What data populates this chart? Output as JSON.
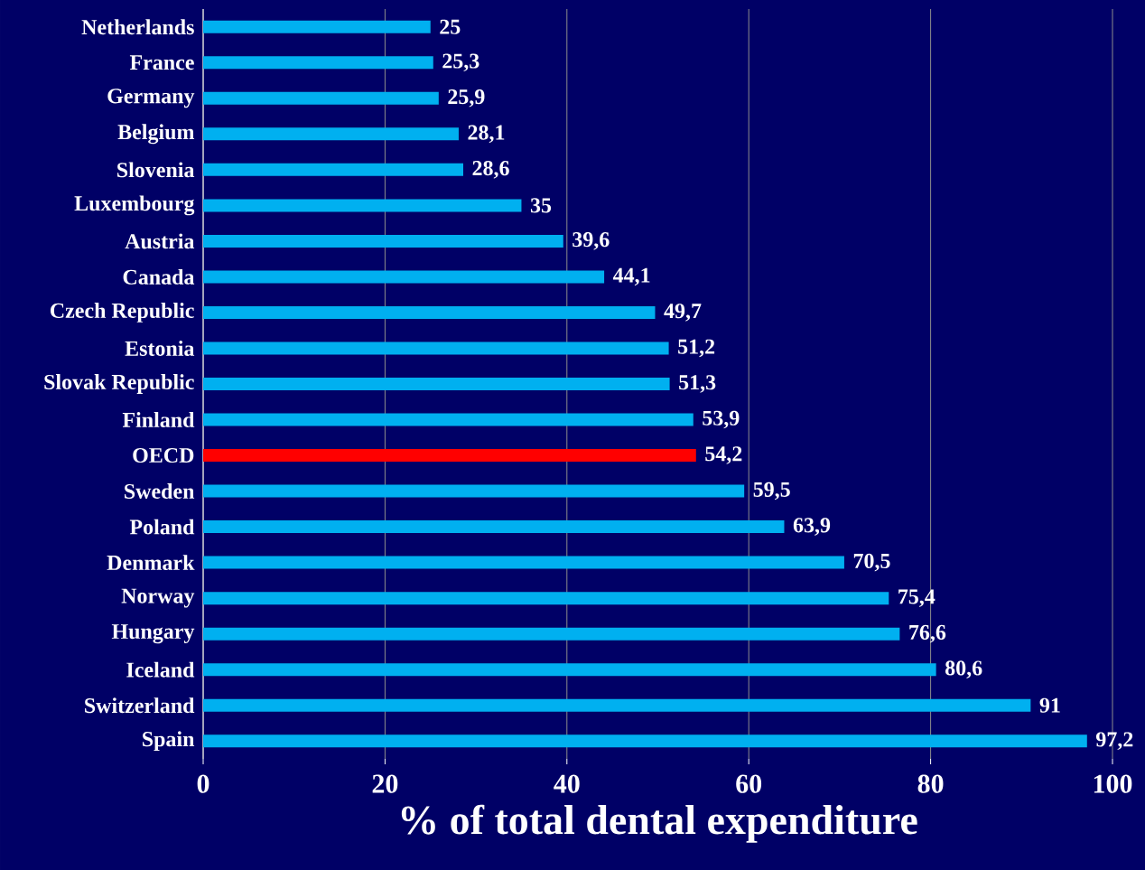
{
  "chart_data": {
    "type": "bar",
    "orientation": "horizontal",
    "xlabel": "% of total dental expenditure",
    "categories": [
      "Netherlands",
      "France",
      "Germany",
      "Belgium",
      "Slovenia",
      "Luxembourg",
      "Austria",
      "Canada",
      "Czech Republic",
      "Estonia",
      "Slovak Republic",
      "Finland",
      "OECD",
      "Sweden",
      "Poland",
      "Denmark",
      "Norway",
      "Hungary",
      "Iceland",
      "Switzerland",
      "Spain"
    ],
    "values": [
      25,
      25.3,
      25.9,
      28.1,
      28.6,
      35,
      39.6,
      44.1,
      49.7,
      51.2,
      51.3,
      53.9,
      54.2,
      59.5,
      63.9,
      70.5,
      75.4,
      76.6,
      80.6,
      91,
      97.2
    ],
    "value_labels": [
      "25",
      "25,3",
      "25,9",
      "28,1",
      "28,6",
      "35",
      "39,6",
      "44,1",
      "49,7",
      "51,2",
      "51,3",
      "53,9",
      "54,2",
      "59,5",
      "63,9",
      "70,5",
      "75,4",
      "76,6",
      "80,6",
      "91",
      "97,2"
    ],
    "colors": [
      "#00b0f0",
      "#00b0f0",
      "#00b0f0",
      "#00b0f0",
      "#00b0f0",
      "#00b0f0",
      "#00b0f0",
      "#00b0f0",
      "#00b0f0",
      "#00b0f0",
      "#00b0f0",
      "#00b0f0",
      "#ff0000",
      "#00b0f0",
      "#00b0f0",
      "#00b0f0",
      "#00b0f0",
      "#00b0f0",
      "#00b0f0",
      "#00b0f0",
      "#00b0f0"
    ],
    "xlim": [
      0,
      100
    ],
    "xticks": [
      0,
      20,
      40,
      60,
      80,
      100
    ],
    "grid": "x"
  }
}
